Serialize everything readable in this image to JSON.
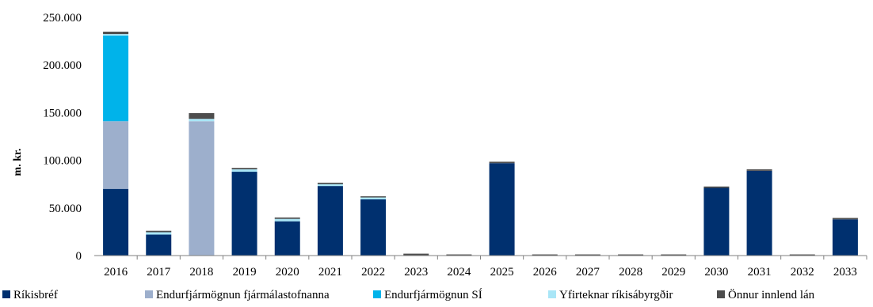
{
  "chart_data": {
    "type": "bar",
    "stacked": true,
    "title": "",
    "xlabel": "",
    "ylabel": "m. kr.",
    "ylim": [
      0,
      250000
    ],
    "yticks": [
      "0",
      "50.000",
      "100.000",
      "150.000",
      "200.000",
      "250.000"
    ],
    "ytick_values": [
      0,
      50000,
      100000,
      150000,
      200000,
      250000
    ],
    "grid": false,
    "legend_position": "bottom",
    "categories": [
      "2016",
      "2017",
      "2018",
      "2019",
      "2020",
      "2021",
      "2022",
      "2023",
      "2024",
      "2025",
      "2026",
      "2027",
      "2028",
      "2029",
      "2030",
      "2031",
      "2032",
      "2033"
    ],
    "series": [
      {
        "name": "Ríkisbréf",
        "color": "#00306f",
        "values": [
          70000,
          22000,
          0,
          88000,
          36000,
          73000,
          59000,
          0,
          0,
          97000,
          0,
          0,
          0,
          0,
          71000,
          89000,
          0,
          38000
        ]
      },
      {
        "name": "Endurfjármögnun fjármálastofnanna",
        "color": "#9dafcc",
        "values": [
          71000,
          0,
          141000,
          0,
          0,
          0,
          0,
          0,
          0,
          0,
          0,
          0,
          0,
          0,
          0,
          0,
          0,
          0
        ]
      },
      {
        "name": "Endurfjármögnun SÍ",
        "color": "#00b3ea",
        "values": [
          90000,
          0,
          0,
          0,
          0,
          0,
          0,
          0,
          0,
          0,
          0,
          0,
          0,
          0,
          0,
          0,
          0,
          0
        ]
      },
      {
        "name": "Yfirteknar ríkisábyrgðir",
        "color": "#a9e6f7",
        "values": [
          1500,
          2500,
          2500,
          2500,
          2500,
          2000,
          2000,
          0,
          0,
          0,
          0,
          0,
          0,
          0,
          0,
          0,
          0,
          0
        ]
      },
      {
        "name": "Önnur innlend lán",
        "color": "#4d4d4d",
        "values": [
          2500,
          1500,
          6000,
          1500,
          1500,
          1500,
          1200,
          2000,
          1200,
          1500,
          1200,
          1200,
          1200,
          1200,
          1500,
          1500,
          1200,
          1500
        ]
      }
    ]
  }
}
